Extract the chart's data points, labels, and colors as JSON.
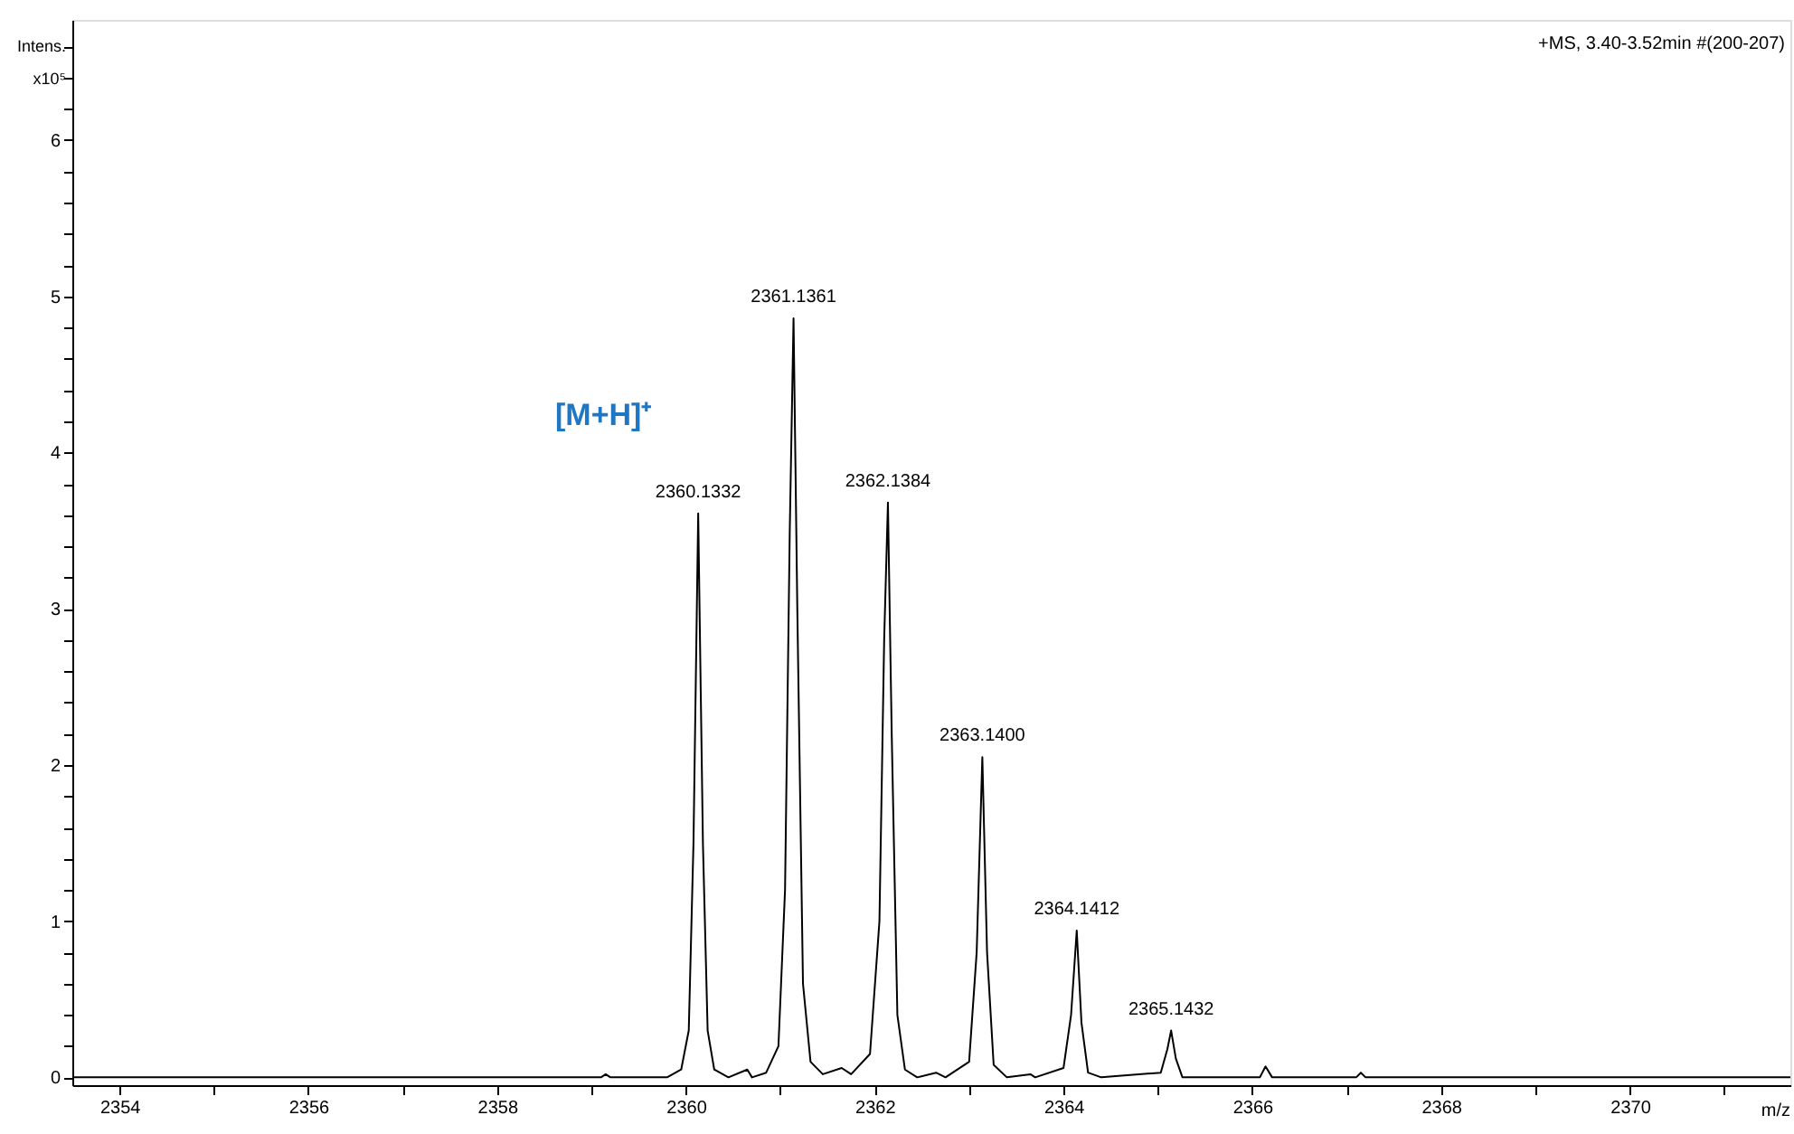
{
  "chart_data": {
    "type": "line",
    "xlabel": "m/z",
    "ylabel": "Intens. x10⁵",
    "xlim": [
      2353.5,
      2371.7
    ],
    "ylim": [
      -0.05,
      6.77
    ],
    "xticks": [
      2354,
      {
        "value": 2355,
        "label": null
      },
      2356,
      {
        "value": 2357,
        "label": null
      },
      2358,
      {
        "value": 2359,
        "label": null
      },
      2360,
      {
        "value": 2361,
        "label": null
      },
      2362,
      {
        "value": 2363,
        "label": null
      },
      2364,
      {
        "value": 2365,
        "label": null
      },
      2366,
      {
        "value": 2367,
        "label": null
      },
      2368,
      {
        "value": 2369,
        "label": null
      },
      2370,
      {
        "value": 2371,
        "label": null
      }
    ],
    "yticks": [
      0,
      {
        "value": 0.2,
        "label": null
      },
      {
        "value": 0.4,
        "label": null
      },
      {
        "value": 0.6,
        "label": null
      },
      {
        "value": 0.8,
        "label": null
      },
      1,
      {
        "value": 1.2,
        "label": null
      },
      {
        "value": 1.4,
        "label": null
      },
      {
        "value": 1.6,
        "label": null
      },
      {
        "value": 1.8,
        "label": null
      },
      2,
      {
        "value": 2.2,
        "label": null
      },
      {
        "value": 2.4,
        "label": null
      },
      {
        "value": 2.6,
        "label": null
      },
      {
        "value": 2.8,
        "label": null
      },
      3,
      {
        "value": 3.2,
        "label": null
      },
      {
        "value": 3.4,
        "label": null
      },
      {
        "value": 3.6,
        "label": null
      },
      {
        "value": 3.8,
        "label": null
      },
      4,
      {
        "value": 4.2,
        "label": null
      },
      {
        "value": 4.4,
        "label": null
      },
      {
        "value": 4.6,
        "label": null
      },
      {
        "value": 4.8,
        "label": null
      },
      5,
      {
        "value": 5.2,
        "label": null
      },
      {
        "value": 5.4,
        "label": null
      },
      {
        "value": 5.6,
        "label": null
      },
      {
        "value": 5.8,
        "label": null
      },
      6,
      {
        "value": 6.2,
        "label": null
      },
      {
        "value": 6.4,
        "label": null
      },
      {
        "value": 6.6,
        "label": null
      }
    ],
    "grid": false,
    "marker": "none",
    "line_style": "solid",
    "series": [
      {
        "color": "#000000",
        "x": [
          2353.5,
          2359.1,
          2359.15,
          2359.2,
          2359.8,
          2359.95,
          2360.03,
          2360.08,
          2360.13,
          2360.18,
          2360.23,
          2360.3,
          2360.45,
          2360.65,
          2360.7,
          2360.85,
          2360.98,
          2361.05,
          2361.1,
          2361.14,
          2361.18,
          2361.24,
          2361.32,
          2361.45,
          2361.65,
          2361.75,
          2361.95,
          2362.05,
          2362.1,
          2362.14,
          2362.18,
          2362.24,
          2362.32,
          2362.45,
          2362.65,
          2362.75,
          2363.0,
          2363.08,
          2363.14,
          2363.19,
          2363.26,
          2363.4,
          2363.65,
          2363.7,
          2364.0,
          2364.08,
          2364.14,
          2364.19,
          2364.26,
          2364.4,
          2365.03,
          2365.1,
          2365.14,
          2365.19,
          2365.26,
          2366.08,
          2366.14,
          2366.21,
          2367.1,
          2367.15,
          2367.2,
          2371.7
        ],
        "values": [
          0,
          0,
          0.02,
          0,
          0,
          0.05,
          0.3,
          1.5,
          3.61,
          1.5,
          0.3,
          0.05,
          0,
          0.05,
          0,
          0.03,
          0.2,
          1.2,
          3.5,
          4.86,
          3.0,
          0.6,
          0.1,
          0.02,
          0.06,
          0.02,
          0.15,
          1.0,
          2.8,
          3.68,
          2.2,
          0.4,
          0.05,
          0,
          0.03,
          0,
          0.1,
          0.8,
          2.05,
          0.8,
          0.08,
          0,
          0.02,
          0,
          0.06,
          0.4,
          0.94,
          0.35,
          0.03,
          0,
          0.03,
          0.18,
          0.3,
          0.12,
          0,
          0,
          0.07,
          0,
          0,
          0.03,
          0,
          0
        ]
      }
    ],
    "annotations": [
      "+MS, 3.40-3.52min #(200-207)",
      "[M+H]⁺",
      {
        "text": "2360.1332",
        "x": 2360.13,
        "y": 3.61
      },
      {
        "text": "2361.1361",
        "x": 2361.14,
        "y": 4.86
      },
      {
        "text": "2362.1384",
        "x": 2362.14,
        "y": 3.68
      },
      {
        "text": "2363.1400",
        "x": 2363.14,
        "y": 2.05
      },
      {
        "text": "2364.1412",
        "x": 2364.14,
        "y": 0.94
      },
      {
        "text": "2365.1432",
        "x": 2365.14,
        "y": 0.3
      }
    ]
  }
}
